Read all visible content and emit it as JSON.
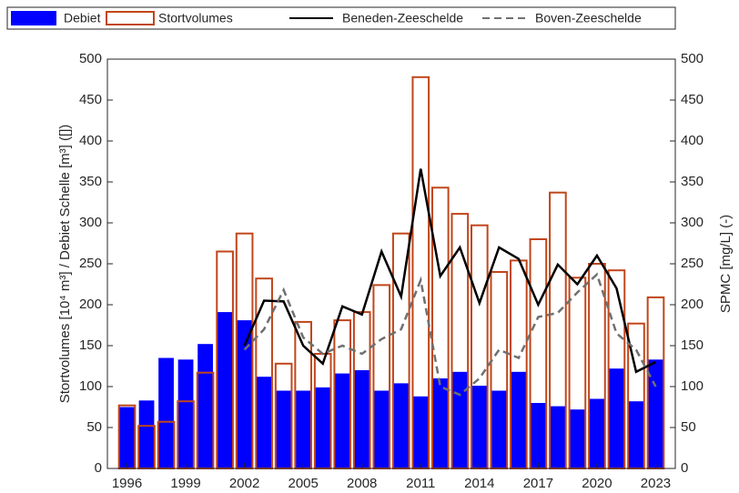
{
  "chart_data": {
    "type": "bar",
    "x": [
      1996,
      1997,
      1998,
      1999,
      2000,
      2001,
      2002,
      2003,
      2004,
      2005,
      2006,
      2007,
      2008,
      2009,
      2010,
      2011,
      2012,
      2013,
      2014,
      2015,
      2016,
      2017,
      2018,
      2019,
      2020,
      2021,
      2022,
      2023
    ],
    "xlim": [
      1995,
      2024
    ],
    "xticks": [
      1996,
      1999,
      2002,
      2005,
      2008,
      2011,
      2014,
      2017,
      2020,
      2023
    ],
    "ylim": [
      0,
      500
    ],
    "yticks": [
      0,
      50,
      100,
      150,
      200,
      250,
      300,
      350,
      400,
      450,
      500
    ],
    "y2lim": [
      0,
      500
    ],
    "y2ticks": [
      0,
      50,
      100,
      150,
      200,
      250,
      300,
      350,
      400,
      450,
      500
    ],
    "ylabel": "Stortvolumes [10⁴ m³] / Debiet Schelle [m³] ([])",
    "y2label": "SPMC [mg/L] (-)",
    "grid": false,
    "legend": "top",
    "series": [
      {
        "name": "Debiet",
        "type": "bar",
        "color": "#0000ff",
        "values": [
          75,
          83,
          135,
          133,
          152,
          191,
          181,
          112,
          95,
          95,
          99,
          116,
          120,
          95,
          104,
          88,
          110,
          118,
          101,
          95,
          118,
          80,
          76,
          72,
          85,
          122,
          82,
          133
        ]
      },
      {
        "name": "Stortvolumes",
        "type": "bar-outline",
        "color": "#c0461b",
        "values": [
          77,
          52,
          57,
          82,
          117,
          265,
          287,
          232,
          128,
          179,
          140,
          181,
          191,
          224,
          287,
          478,
          343,
          311,
          297,
          240,
          254,
          280,
          337,
          233,
          250,
          242,
          177,
          209
        ]
      },
      {
        "name": "Beneden-Zeeschelde",
        "type": "line",
        "linestyle": "solid",
        "axis": "y2",
        "color": "#000000",
        "values": [
          null,
          null,
          null,
          null,
          null,
          null,
          150,
          205,
          204,
          150,
          128,
          198,
          188,
          265,
          210,
          366,
          235,
          270,
          202,
          270,
          256,
          200,
          249,
          225,
          260,
          220,
          118,
          130
        ]
      },
      {
        "name": "Boven-Zeeschelde",
        "type": "line",
        "linestyle": "dashed",
        "axis": "y2",
        "color": "#707070",
        "values": [
          null,
          null,
          null,
          null,
          null,
          null,
          145,
          170,
          218,
          160,
          140,
          150,
          140,
          158,
          170,
          230,
          100,
          90,
          110,
          145,
          135,
          185,
          190,
          215,
          237,
          165,
          145,
          100
        ]
      }
    ]
  }
}
